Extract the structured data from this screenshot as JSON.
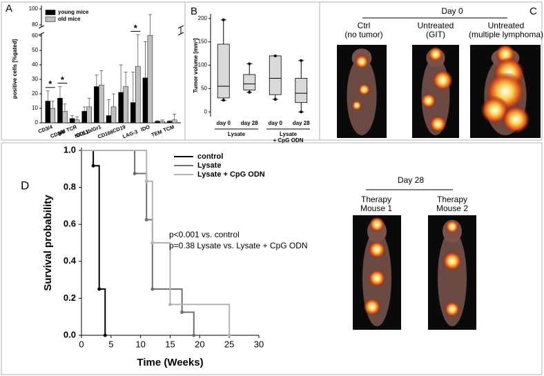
{
  "chart_data": [
    {
      "type": "bar",
      "panel": "A",
      "y_label": "positive cells [%gated]",
      "categories": [
        "CD3/4",
        "CD3/8",
        "g/d TCR",
        "NK1.1",
        "CD11b/Gr1",
        "CD166",
        "CD19",
        "LAG-3",
        "IDO",
        "TEM",
        "TCM"
      ],
      "series": [
        {
          "name": "young mice",
          "color": "#000000",
          "values": [
            15,
            17,
            3,
            8,
            25,
            5,
            21,
            14,
            31,
            1,
            1
          ],
          "errors": [
            7,
            8,
            2,
            3,
            8,
            11,
            19,
            21,
            25,
            0.5,
            0.5
          ]
        },
        {
          "name": "old mice",
          "color": "#c0c0c0",
          "values": [
            10,
            8,
            2,
            11,
            26,
            11,
            25,
            39,
            61,
            1,
            2
          ],
          "errors": [
            5,
            5,
            2,
            6,
            10,
            9,
            10,
            23,
            32,
            1,
            4
          ]
        }
      ],
      "significance": [
        "*",
        "*",
        null,
        null,
        null,
        null,
        null,
        "*",
        null,
        null,
        null
      ],
      "ylim": [
        0,
        100
      ],
      "yticks": [
        0,
        10,
        20,
        30,
        40,
        50,
        60,
        80,
        100
      ],
      "y_break": [
        60,
        80
      ]
    },
    {
      "type": "box",
      "panel": "B",
      "y_label": "Tumor volume [mm³]",
      "categories": [
        "day 0",
        "day 28",
        "day 0",
        "day 28"
      ],
      "groups": [
        [
          "Lysate"
        ],
        [
          "Lysate",
          "+ CpG ODN"
        ]
      ],
      "color": "#d9d9d9",
      "boxes": [
        {
          "min": 25,
          "q1": 30,
          "median": 55,
          "q3": 145,
          "max": 197
        },
        {
          "min": 42,
          "q1": 47,
          "median": 60,
          "q3": 80,
          "max": 103
        },
        {
          "min": 27,
          "q1": 37,
          "median": 72,
          "q3": 120,
          "max": 120
        },
        {
          "min": 0,
          "q1": 20,
          "median": 40,
          "q3": 72,
          "max": 110
        }
      ],
      "ylim": [
        -10,
        210
      ],
      "yticks": [
        0,
        50,
        100,
        150,
        200
      ]
    },
    {
      "type": "line",
      "panel": "D",
      "x_label": "Time (Weeks)",
      "y_label": "Survival probability",
      "series": [
        {
          "name": "control",
          "color": "#000000",
          "x": [
            0,
            2,
            2,
            3,
            3,
            4,
            4
          ],
          "values": [
            1,
            1,
            0.917,
            0.917,
            0.25,
            0.25,
            0
          ]
        },
        {
          "name": "Lysate",
          "color": "#707070",
          "x": [
            0,
            9,
            9,
            11,
            11,
            12,
            12,
            17,
            17,
            19,
            19
          ],
          "values": [
            1,
            1,
            0.875,
            0.875,
            0.625,
            0.625,
            0.25,
            0.25,
            0.125,
            0.125,
            0
          ]
        },
        {
          "name": "Lysate + CpG ODN",
          "color": "#b4b4b4",
          "x": [
            0,
            11,
            11,
            12,
            12,
            15,
            15,
            25,
            25
          ],
          "values": [
            1,
            1,
            0.833,
            0.833,
            0.5,
            0.5,
            0.167,
            0.167,
            0
          ]
        }
      ],
      "annotations": [
        "p<0.001 vs. control",
        "p=0.38 Lysate vs. Lysate + CpG ODN"
      ],
      "xlim": [
        0,
        30
      ],
      "xticks": [
        0,
        5,
        10,
        15,
        20,
        25,
        30
      ],
      "ylim": [
        0,
        1
      ],
      "yticks": [
        {
          "value": 0,
          "label": "0.0"
        },
        {
          "value": 0.2,
          "label": "0.2"
        },
        {
          "value": 0.4,
          "label": "0.4"
        },
        {
          "value": 0.6,
          "label": "0.6"
        },
        {
          "value": 0.8,
          "label": "0.8"
        },
        {
          "value": 1,
          "label": "1.0"
        }
      ]
    }
  ],
  "images": {
    "panel": "C",
    "day0": {
      "title": "Day 0",
      "captions": [
        [
          "Ctrl",
          "(no tumor)"
        ],
        [
          "Untreated",
          "(GIT)"
        ],
        [
          "Untreated",
          "(multiple lymphoma)"
        ]
      ]
    },
    "day28": {
      "title": "Day 28",
      "captions": [
        [
          "Therapy",
          "Mouse 1"
        ],
        [
          "Therapy",
          "Mouse 2"
        ]
      ]
    }
  }
}
